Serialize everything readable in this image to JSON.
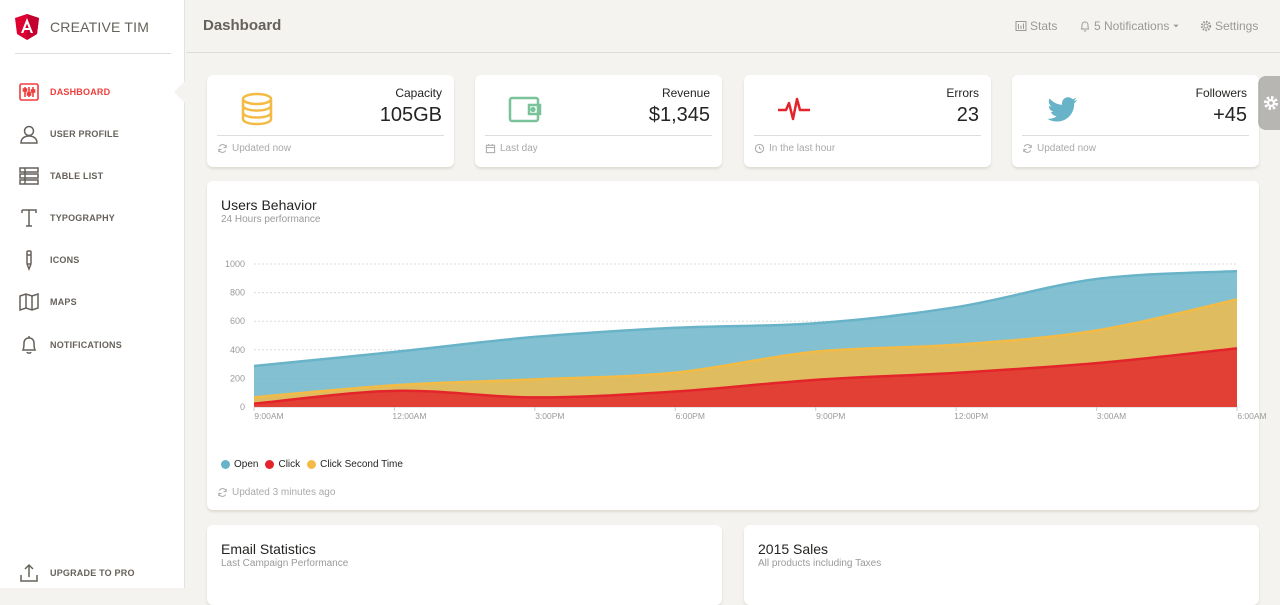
{
  "brand": {
    "name": "CREATIVE TIM"
  },
  "sidebar": {
    "items": [
      {
        "label": "DASHBOARD",
        "icon": "dashboard-icon",
        "active": true
      },
      {
        "label": "USER PROFILE",
        "icon": "user-icon"
      },
      {
        "label": "TABLE LIST",
        "icon": "table-list-icon"
      },
      {
        "label": "TYPOGRAPHY",
        "icon": "typography-icon"
      },
      {
        "label": "ICONS",
        "icon": "pencil-icon"
      },
      {
        "label": "MAPS",
        "icon": "map-icon"
      },
      {
        "label": "NOTIFICATIONS",
        "icon": "bell-icon"
      }
    ],
    "upgrade": {
      "label": "UPGRADE TO PRO",
      "icon": "upload-icon"
    }
  },
  "header": {
    "title": "Dashboard",
    "stats": "Stats",
    "notifications": "5 Notifications",
    "settings": "Settings"
  },
  "stats": [
    {
      "label": "Capacity",
      "value": "105GB",
      "footer": "Updated now",
      "icon": "database-icon",
      "footer_icon": "refresh-icon",
      "color": "#f3bb45"
    },
    {
      "label": "Revenue",
      "value": "$1,345",
      "footer": "Last day",
      "icon": "wallet-icon",
      "footer_icon": "calendar-icon",
      "color": "#7ac29a"
    },
    {
      "label": "Errors",
      "value": "23",
      "footer": "In the last hour",
      "icon": "pulse-icon",
      "footer_icon": "clock-icon",
      "color": "#eb5e28"
    },
    {
      "label": "Followers",
      "value": "+45",
      "footer": "Updated now",
      "icon": "twitter-icon",
      "footer_icon": "refresh-icon",
      "color": "#68b3c8"
    }
  ],
  "users_behavior": {
    "title": "Users Behavior",
    "subtitle": "24 Hours performance",
    "footer": "Updated 3 minutes ago"
  },
  "chart_data": {
    "type": "area",
    "x": [
      "9:00AM",
      "12:00AM",
      "3:00PM",
      "6:00PM",
      "9:00PM",
      "12:00PM",
      "3:00AM",
      "6:00AM"
    ],
    "yticks": [
      0,
      200,
      400,
      600,
      800,
      1000
    ],
    "ylim": [
      0,
      1000
    ],
    "grid": true,
    "legend_position": "bottom-left",
    "series": [
      {
        "name": "Open",
        "color": "#68b3c8",
        "values": [
          287,
          385,
          490,
          554,
          586,
          698,
          895,
          950
        ]
      },
      {
        "name": "Click Second Time",
        "color": "#f3bb45",
        "values": [
          67,
          152,
          193,
          240,
          387,
          435,
          535,
          752
        ]
      },
      {
        "name": "Click",
        "color": "#e3242b",
        "values": [
          23,
          113,
          67,
          108,
          190,
          239,
          307,
          410
        ]
      }
    ],
    "legend_order": [
      "Open",
      "Click",
      "Click Second Time"
    ]
  },
  "email_stats": {
    "title": "Email Statistics",
    "subtitle": "Last Campaign Performance"
  },
  "sales": {
    "title": "2015 Sales",
    "subtitle": "All products including Taxes"
  },
  "colors": {
    "accent": "#ef3d3b",
    "background": "#f4f3ef"
  }
}
